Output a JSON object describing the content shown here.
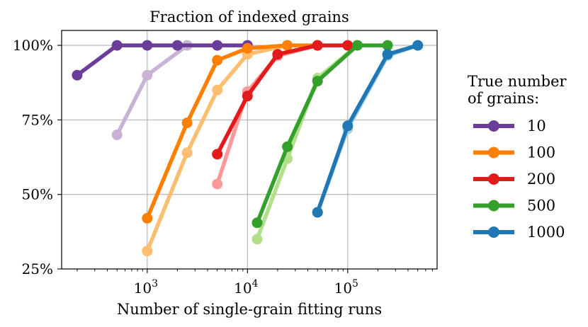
{
  "chart_data": {
    "type": "line",
    "title": "Fraction of indexed grains",
    "xlabel": "Number of single-grain fitting runs",
    "ylabel": "",
    "xscale": "log",
    "xlim": [
      140,
      780000
    ],
    "ylim": [
      25,
      105
    ],
    "grid": true,
    "x_ticks": [
      {
        "value": 1000,
        "base": "10",
        "exp": "3"
      },
      {
        "value": 10000,
        "base": "10",
        "exp": "4"
      },
      {
        "value": 100000,
        "base": "10",
        "exp": "5"
      }
    ],
    "y_ticks": [
      {
        "value": 25,
        "label": "25%"
      },
      {
        "value": 50,
        "label": "50%"
      },
      {
        "value": 75,
        "label": "75%"
      },
      {
        "value": 100,
        "label": "100%"
      }
    ],
    "legend": {
      "title_lines": [
        "True number",
        "of grains:"
      ],
      "position": "outside-right"
    },
    "series": [
      {
        "name": "10",
        "color": "#6a3d9a",
        "x": [
          200,
          500,
          1000,
          2000,
          5000,
          10000
        ],
        "y": [
          90,
          100,
          100,
          100,
          100,
          100
        ]
      },
      {
        "name": "100",
        "color": "#ff7f00",
        "x": [
          1000,
          2500,
          5000,
          10000,
          25000,
          50000
        ],
        "y": [
          42,
          74,
          95,
          99,
          100,
          100
        ]
      },
      {
        "name": "200",
        "color": "#e31a1c",
        "x": [
          5000,
          10000,
          20000,
          50000,
          100000
        ],
        "y": [
          63.5,
          83,
          97,
          100,
          100
        ]
      },
      {
        "name": "500",
        "color": "#33a02c",
        "x": [
          12500,
          25000,
          50000,
          125000,
          250000
        ],
        "y": [
          40.5,
          66,
          88,
          100,
          100
        ]
      },
      {
        "name": "1000",
        "color": "#1f78b4",
        "x": [
          50000,
          100000,
          250000,
          500000
        ],
        "y": [
          44,
          73,
          97,
          100
        ]
      }
    ],
    "secondary_series": [
      {
        "color": "#cab2d6",
        "x": [
          500,
          1000,
          2500
        ],
        "y": [
          70,
          90,
          100
        ]
      },
      {
        "color": "#fdbf6f",
        "x": [
          1000,
          2500,
          5000,
          10000,
          25000
        ],
        "y": [
          31,
          64,
          85,
          97,
          100
        ]
      },
      {
        "color": "#fb9a99",
        "x": [
          5000,
          10000,
          20000,
          50000
        ],
        "y": [
          53.5,
          84.5,
          96.5,
          100
        ]
      },
      {
        "color": "#b2df8a",
        "x": [
          12500,
          25000,
          50000,
          125000
        ],
        "y": [
          35,
          62,
          89,
          100
        ]
      },
      {
        "color": "#a6cee3",
        "x": [
          50000,
          100000,
          250000,
          500000
        ],
        "y": [
          44,
          72,
          96.5,
          100
        ]
      }
    ]
  }
}
